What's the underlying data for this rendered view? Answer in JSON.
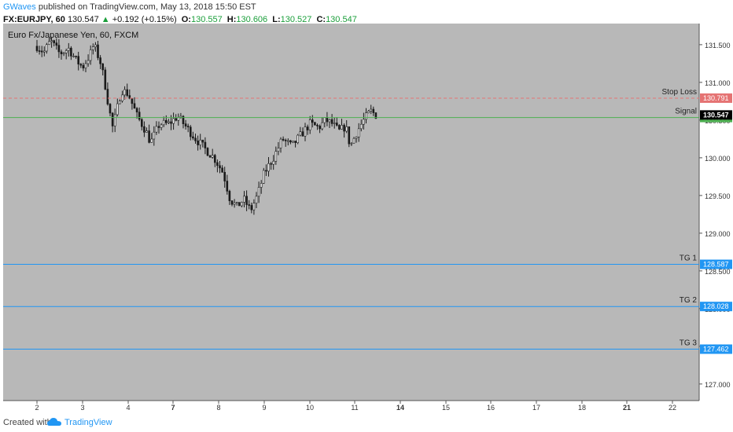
{
  "header": {
    "author": "GWaves",
    "published": "published on TradingView.com, May 13, 2018 15:50 EST",
    "symbol": "FX:EURJPY, 60",
    "last": "130.547",
    "change_arrow": "▲",
    "change": "+0.192 (+0.15%)",
    "o_label": "O:",
    "o": "130.557",
    "h_label": "H:",
    "h": "130.606",
    "l_label": "L:",
    "l": "130.527",
    "c_label": "C:",
    "c": "130.547"
  },
  "footer": {
    "created_with": "Created with",
    "brand": "TradingView"
  },
  "colors": {
    "plot_bg": "#b8b8b8",
    "candle": "#1a1a1a",
    "stop_loss": "#e57373",
    "signal": "#4caf50",
    "target": "#2196f3",
    "last_badge": "#000000"
  },
  "chart_data": {
    "type": "candlestick",
    "title": "Euro Fx/Japanese Yen, 60, FXCM",
    "x_ticks": [
      "2",
      "3",
      "4",
      "7",
      "8",
      "9",
      "10",
      "11",
      "14",
      "15",
      "16",
      "17",
      "18",
      "21",
      "22"
    ],
    "x_ticks_bold": [
      "7",
      "14",
      "21"
    ],
    "y_ticks": [
      131.5,
      131.0,
      130.5,
      130.0,
      129.5,
      129.0,
      128.5,
      128.0,
      127.5,
      127.0
    ],
    "ylim": [
      126.78,
      131.78
    ],
    "grid": false,
    "price_lines": [
      {
        "name": "Stop Loss",
        "value": 130.791,
        "label": "130.791",
        "style": "dashed",
        "color": "#e57373"
      },
      {
        "name": "Signal",
        "value": 130.534,
        "label": "130.534",
        "style": "solid",
        "color": "#4caf50"
      },
      {
        "name": "TG 1",
        "value": 128.587,
        "label": "128.587",
        "style": "solid",
        "color": "#2196f3"
      },
      {
        "name": "TG 2",
        "value": 128.028,
        "label": "128.028",
        "style": "solid",
        "color": "#2196f3"
      },
      {
        "name": "TG 3",
        "value": 127.462,
        "label": "127.462",
        "style": "solid",
        "color": "#2196f3"
      }
    ],
    "last_price": {
      "value": 130.547,
      "label": "130.547"
    },
    "path": [
      [
        2,
        131.48
      ],
      [
        2.15,
        131.4
      ],
      [
        2.3,
        131.55
      ],
      [
        2.5,
        131.38
      ],
      [
        2.7,
        131.45
      ],
      [
        2.85,
        131.3
      ],
      [
        3.0,
        131.2
      ],
      [
        3.15,
        131.35
      ],
      [
        3.25,
        131.5
      ],
      [
        3.4,
        131.25
      ],
      [
        3.5,
        130.95
      ],
      [
        3.58,
        130.65
      ],
      [
        3.66,
        130.4
      ],
      [
        3.72,
        130.55
      ],
      [
        3.85,
        130.9
      ],
      [
        4.0,
        130.85
      ],
      [
        4.2,
        130.55
      ],
      [
        4.4,
        130.35
      ],
      [
        4.5,
        130.2
      ],
      [
        4.7,
        130.45
      ],
      [
        4.9,
        130.45
      ],
      [
        5.1,
        130.55
      ],
      [
        5.3,
        130.4
      ],
      [
        5.5,
        130.25
      ],
      [
        5.7,
        130.12
      ],
      [
        5.9,
        130.0
      ],
      [
        6.1,
        129.8
      ],
      [
        6.25,
        129.45
      ],
      [
        6.4,
        129.35
      ],
      [
        6.55,
        129.45
      ],
      [
        6.7,
        129.3
      ],
      [
        6.85,
        129.5
      ],
      [
        7.0,
        129.8
      ],
      [
        7.2,
        130.0
      ],
      [
        7.4,
        130.25
      ],
      [
        7.6,
        130.15
      ],
      [
        7.8,
        130.3
      ],
      [
        8.0,
        130.45
      ],
      [
        8.2,
        130.4
      ],
      [
        8.35,
        130.5
      ],
      [
        8.5,
        130.45
      ],
      [
        8.65,
        130.35
      ],
      [
        8.8,
        130.42
      ],
      [
        8.9,
        130.15
      ],
      [
        9.05,
        130.35
      ],
      [
        9.2,
        130.5
      ],
      [
        9.35,
        130.62
      ],
      [
        9.5,
        130.55
      ]
    ],
    "path_x_note": "x is the day value on the x_ticks scale; 2..22 positions interpolate between printed day labels"
  }
}
